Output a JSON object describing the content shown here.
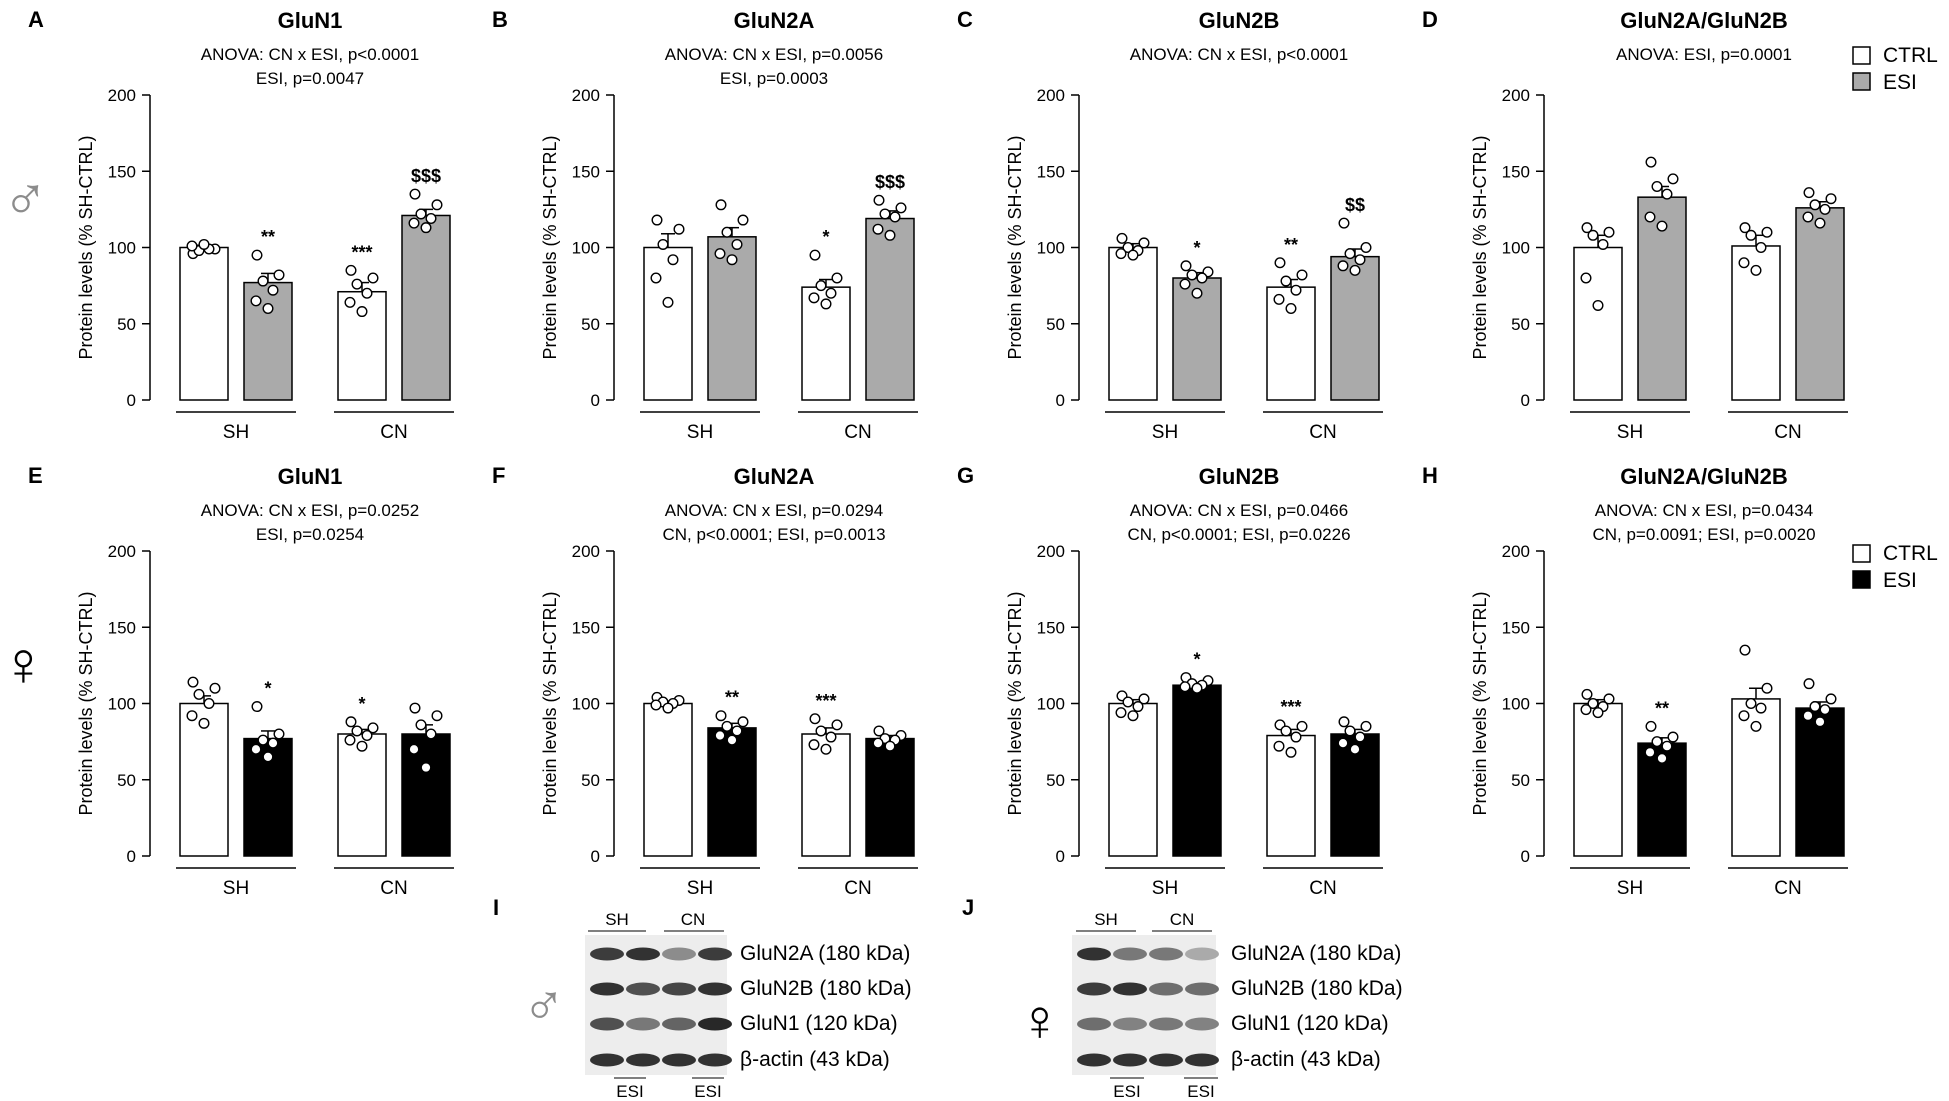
{
  "figure": {
    "sex_symbols": {
      "male": "♂",
      "female": "♀"
    },
    "legend_male": {
      "entries": [
        "CTRL",
        "ESI"
      ],
      "colors": [
        "#ffffff",
        "#aaaaaa"
      ]
    },
    "legend_female": {
      "entries": [
        "CTRL",
        "ESI"
      ],
      "colors": [
        "#ffffff",
        "#000000"
      ]
    },
    "colors": {
      "ctrl": "#ffffff",
      "esi_male": "#aaaaaa",
      "esi_female": "#000000",
      "stroke": "#000000",
      "symbol_gray": "#8c8c8c"
    }
  },
  "chart_data": [
    {
      "panel": "A",
      "type": "bar",
      "title": "GluN1",
      "stats": [
        "ANOVA: CN x ESI, p<0.0001",
        "ESI, p=0.0047"
      ],
      "ylabel": "Protein levels (% SH-CTRL)",
      "ylim": [
        0,
        200
      ],
      "yticks": [
        0,
        50,
        100,
        150,
        200
      ],
      "groups": [
        "SH",
        "CN"
      ],
      "series": [
        "CTRL",
        "ESI"
      ],
      "bars": [
        {
          "group": "SH",
          "series": "CTRL",
          "mean": 100,
          "sem": 1.5,
          "points": [
            96,
            99,
            98,
            99,
            101,
            102
          ],
          "sig": ""
        },
        {
          "group": "SH",
          "series": "ESI",
          "mean": 77,
          "sem": 6,
          "points": [
            95,
            82,
            78,
            72,
            65,
            60
          ],
          "sig": "**"
        },
        {
          "group": "CN",
          "series": "CTRL",
          "mean": 71,
          "sem": 6,
          "points": [
            85,
            80,
            76,
            70,
            64,
            58
          ],
          "sig": "***"
        },
        {
          "group": "CN",
          "series": "ESI",
          "mean": 121,
          "sem": 4,
          "points": [
            135,
            128,
            122,
            119,
            116,
            113
          ],
          "sig": "$$$"
        }
      ]
    },
    {
      "panel": "B",
      "type": "bar",
      "title": "GluN2A",
      "stats": [
        "ANOVA: CN x ESI, p=0.0056",
        "ESI, p=0.0003"
      ],
      "ylabel": "Protein levels (% SH-CTRL)",
      "ylim": [
        0,
        200
      ],
      "yticks": [
        0,
        50,
        100,
        150,
        200
      ],
      "groups": [
        "SH",
        "CN"
      ],
      "series": [
        "CTRL",
        "ESI"
      ],
      "bars": [
        {
          "group": "SH",
          "series": "CTRL",
          "mean": 100,
          "sem": 9,
          "points": [
            118,
            112,
            102,
            92,
            80,
            64
          ],
          "sig": ""
        },
        {
          "group": "SH",
          "series": "ESI",
          "mean": 107,
          "sem": 6,
          "points": [
            128,
            118,
            110,
            102,
            96,
            92
          ],
          "sig": ""
        },
        {
          "group": "CN",
          "series": "CTRL",
          "mean": 74,
          "sem": 5,
          "points": [
            95,
            80,
            75,
            70,
            67,
            63
          ],
          "sig": "*"
        },
        {
          "group": "CN",
          "series": "ESI",
          "mean": 119,
          "sem": 5,
          "points": [
            131,
            126,
            122,
            120,
            112,
            108
          ],
          "sig": "$$$"
        }
      ]
    },
    {
      "panel": "C",
      "type": "bar",
      "title": "GluN2B",
      "stats": [
        "ANOVA: CN x ESI, p<0.0001"
      ],
      "ylabel": "Protein levels (% SH-CTRL)",
      "ylim": [
        0,
        200
      ],
      "yticks": [
        0,
        50,
        100,
        150,
        200
      ],
      "groups": [
        "SH",
        "CN"
      ],
      "series": [
        "CTRL",
        "ESI"
      ],
      "bars": [
        {
          "group": "SH",
          "series": "CTRL",
          "mean": 100,
          "sem": 2.5,
          "points": [
            106,
            103,
            100,
            98,
            96,
            95
          ],
          "sig": ""
        },
        {
          "group": "SH",
          "series": "ESI",
          "mean": 80,
          "sem": 3.5,
          "points": [
            88,
            84,
            82,
            80,
            76,
            70
          ],
          "sig": "*"
        },
        {
          "group": "CN",
          "series": "CTRL",
          "mean": 74,
          "sem": 5,
          "points": [
            90,
            82,
            78,
            72,
            66,
            60
          ],
          "sig": "**"
        },
        {
          "group": "CN",
          "series": "ESI",
          "mean": 94,
          "sem": 5,
          "points": [
            116,
            100,
            96,
            92,
            88,
            85
          ],
          "sig": "$$"
        }
      ]
    },
    {
      "panel": "D",
      "type": "bar",
      "title": "GluN2A/GluN2B",
      "stats": [
        "ANOVA: ESI, p=0.0001"
      ],
      "ylabel": "Protein levels (% SH-CTRL)",
      "ylim": [
        0,
        200
      ],
      "yticks": [
        0,
        50,
        100,
        150,
        200
      ],
      "groups": [
        "SH",
        "CN"
      ],
      "series": [
        "CTRL",
        "ESI"
      ],
      "bars": [
        {
          "group": "SH",
          "series": "CTRL",
          "mean": 100,
          "sem": 8,
          "points": [
            113,
            110,
            108,
            102,
            80,
            62
          ],
          "sig": ""
        },
        {
          "group": "SH",
          "series": "ESI",
          "mean": 133,
          "sem": 7,
          "points": [
            156,
            145,
            140,
            135,
            120,
            114
          ],
          "sig": ""
        },
        {
          "group": "CN",
          "series": "CTRL",
          "mean": 101,
          "sem": 7,
          "points": [
            113,
            110,
            108,
            100,
            90,
            85
          ],
          "sig": ""
        },
        {
          "group": "CN",
          "series": "ESI",
          "mean": 126,
          "sem": 4,
          "points": [
            136,
            132,
            128,
            125,
            120,
            116
          ],
          "sig": ""
        }
      ]
    },
    {
      "panel": "E",
      "type": "bar",
      "title": "GluN1",
      "stats": [
        "ANOVA: CN x ESI, p=0.0252",
        "ESI, p=0.0254"
      ],
      "ylabel": "Protein levels (% SH-CTRL)",
      "ylim": [
        0,
        200
      ],
      "yticks": [
        0,
        50,
        100,
        150,
        200
      ],
      "groups": [
        "SH",
        "CN"
      ],
      "series": [
        "CTRL",
        "ESI"
      ],
      "bars": [
        {
          "group": "SH",
          "series": "CTRL",
          "mean": 100,
          "sem": 5,
          "points": [
            114,
            110,
            106,
            100,
            92,
            87
          ],
          "sig": ""
        },
        {
          "group": "SH",
          "series": "ESI",
          "mean": 77,
          "sem": 5,
          "points": [
            98,
            80,
            76,
            74,
            70,
            65
          ],
          "sig": "*"
        },
        {
          "group": "CN",
          "series": "CTRL",
          "mean": 80,
          "sem": 3,
          "points": [
            88,
            84,
            82,
            79,
            76,
            72
          ],
          "sig": "*"
        },
        {
          "group": "CN",
          "series": "ESI",
          "mean": 80,
          "sem": 6,
          "points": [
            97,
            92,
            86,
            80,
            70,
            58
          ],
          "sig": ""
        }
      ]
    },
    {
      "panel": "F",
      "type": "bar",
      "title": "GluN2A",
      "stats": [
        "ANOVA: CN x ESI, p=0.0294",
        "CN, p<0.0001; ESI, p=0.0013"
      ],
      "ylabel": "Protein levels (% SH-CTRL)",
      "ylim": [
        0,
        200
      ],
      "yticks": [
        0,
        50,
        100,
        150,
        200
      ],
      "groups": [
        "SH",
        "CN"
      ],
      "series": [
        "CTRL",
        "ESI"
      ],
      "bars": [
        {
          "group": "SH",
          "series": "CTRL",
          "mean": 100,
          "sem": 1.5,
          "points": [
            104,
            102,
            101,
            100,
            99,
            97
          ],
          "sig": ""
        },
        {
          "group": "SH",
          "series": "ESI",
          "mean": 84,
          "sem": 3,
          "points": [
            92,
            88,
            85,
            82,
            79,
            76
          ],
          "sig": "**"
        },
        {
          "group": "CN",
          "series": "CTRL",
          "mean": 80,
          "sem": 4,
          "points": [
            90,
            86,
            82,
            78,
            73,
            70
          ],
          "sig": "***"
        },
        {
          "group": "CN",
          "series": "ESI",
          "mean": 77,
          "sem": 2,
          "points": [
            82,
            79,
            77,
            76,
            74,
            72
          ],
          "sig": ""
        }
      ]
    },
    {
      "panel": "G",
      "type": "bar",
      "title": "GluN2B",
      "stats": [
        "ANOVA: CN x ESI, p=0.0466",
        "CN, p<0.0001; ESI, p=0.0226"
      ],
      "ylabel": "Protein levels (% SH-CTRL)",
      "ylim": [
        0,
        200
      ],
      "yticks": [
        0,
        50,
        100,
        150,
        200
      ],
      "groups": [
        "SH",
        "CN"
      ],
      "series": [
        "CTRL",
        "ESI"
      ],
      "bars": [
        {
          "group": "SH",
          "series": "CTRL",
          "mean": 100,
          "sem": 2.5,
          "points": [
            105,
            103,
            101,
            98,
            94,
            92
          ],
          "sig": ""
        },
        {
          "group": "SH",
          "series": "ESI",
          "mean": 112,
          "sem": 1.5,
          "points": [
            117,
            115,
            113,
            112,
            111,
            110
          ],
          "sig": "*"
        },
        {
          "group": "CN",
          "series": "CTRL",
          "mean": 79,
          "sem": 4,
          "points": [
            86,
            85,
            82,
            78,
            72,
            68
          ],
          "sig": "***"
        },
        {
          "group": "CN",
          "series": "ESI",
          "mean": 80,
          "sem": 3,
          "points": [
            88,
            85,
            82,
            78,
            74,
            70
          ],
          "sig": ""
        }
      ]
    },
    {
      "panel": "H",
      "type": "bar",
      "title": "GluN2A/GluN2B",
      "stats": [
        "ANOVA: CN x ESI, p=0.0434",
        "CN, p=0.0091; ESI, p=0.0020"
      ],
      "ylabel": "Protein levels (% SH-CTRL)",
      "ylim": [
        0,
        200
      ],
      "yticks": [
        0,
        50,
        100,
        150,
        200
      ],
      "groups": [
        "SH",
        "CN"
      ],
      "series": [
        "CTRL",
        "ESI"
      ],
      "bars": [
        {
          "group": "SH",
          "series": "CTRL",
          "mean": 100,
          "sem": 2.5,
          "points": [
            106,
            103,
            100,
            98,
            96,
            94
          ],
          "sig": ""
        },
        {
          "group": "SH",
          "series": "ESI",
          "mean": 74,
          "sem": 3.5,
          "points": [
            85,
            78,
            75,
            72,
            68,
            64
          ],
          "sig": "**"
        },
        {
          "group": "CN",
          "series": "CTRL",
          "mean": 103,
          "sem": 7,
          "points": [
            135,
            110,
            100,
            97,
            92,
            85
          ],
          "sig": ""
        },
        {
          "group": "CN",
          "series": "ESI",
          "mean": 97,
          "sem": 4,
          "points": [
            113,
            103,
            98,
            96,
            92,
            88
          ],
          "sig": ""
        }
      ]
    }
  ],
  "blots": [
    {
      "panel": "I",
      "sex": "male",
      "group_labels": [
        "SH",
        "CN"
      ],
      "esi_label": "ESI",
      "bands": [
        "GluN2A (180 kDa)",
        "GluN2B (180 kDa)",
        "GluN1 (120 kDa)",
        "β-actin (43 kDa)"
      ],
      "intensity": [
        [
          0.85,
          0.9,
          0.45,
          0.85
        ],
        [
          0.9,
          0.75,
          0.8,
          0.9
        ],
        [
          0.75,
          0.55,
          0.65,
          0.95
        ],
        [
          0.9,
          0.9,
          0.9,
          0.9
        ]
      ]
    },
    {
      "panel": "J",
      "sex": "female",
      "group_labels": [
        "SH",
        "CN"
      ],
      "esi_label": "ESI",
      "bands": [
        "GluN2A (180 kDa)",
        "GluN2B (180 kDa)",
        "GluN1 (120 kDa)",
        "β-actin (43 kDa)"
      ],
      "intensity": [
        [
          0.9,
          0.55,
          0.55,
          0.3
        ],
        [
          0.85,
          0.9,
          0.6,
          0.6
        ],
        [
          0.6,
          0.5,
          0.55,
          0.5
        ],
        [
          0.9,
          0.9,
          0.9,
          0.9
        ]
      ]
    }
  ]
}
